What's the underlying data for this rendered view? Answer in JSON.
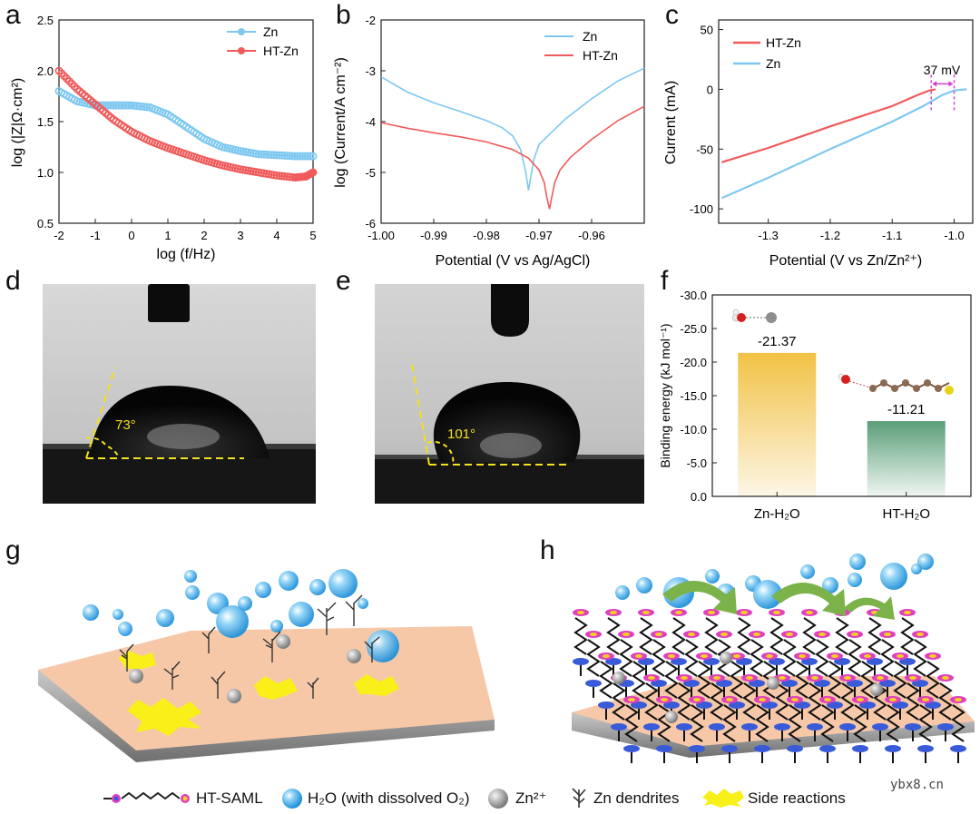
{
  "figure": {
    "panel_labels": [
      "a",
      "b",
      "c",
      "d",
      "e",
      "f",
      "g",
      "h"
    ],
    "watermark": "ybx8.cn"
  },
  "chart_data": [
    {
      "panel": "a",
      "type": "scatter",
      "xlabel": "log (f/Hz)",
      "ylabel": "log (|Z|Ω·cm²)",
      "xlim": [
        -2,
        5
      ],
      "ylim": [
        0.5,
        2.5
      ],
      "xticks": [
        "-2",
        "-1",
        "0",
        "1",
        "2",
        "3",
        "4",
        "5"
      ],
      "yticks": [
        "0.5",
        "1.0",
        "1.5",
        "2.0",
        "2.5"
      ],
      "legend": [
        "Zn",
        "HT-Zn"
      ],
      "series": [
        {
          "name": "Zn",
          "color": "#7ec8f0",
          "x": [
            -2,
            -1.5,
            -1,
            -0.5,
            0,
            0.5,
            1,
            1.5,
            2,
            2.5,
            3,
            3.5,
            4,
            4.5,
            5
          ],
          "y": [
            1.8,
            1.7,
            1.66,
            1.66,
            1.66,
            1.64,
            1.57,
            1.45,
            1.33,
            1.25,
            1.21,
            1.18,
            1.17,
            1.16,
            1.16
          ]
        },
        {
          "name": "HT-Zn",
          "color": "#f05a5a",
          "x": [
            -2,
            -1.5,
            -1,
            -0.5,
            0,
            0.5,
            1,
            1.5,
            2,
            2.5,
            3,
            3.5,
            4,
            4.5,
            4.8,
            5
          ],
          "y": [
            2.0,
            1.82,
            1.67,
            1.52,
            1.4,
            1.31,
            1.24,
            1.18,
            1.12,
            1.07,
            1.03,
            1.0,
            0.97,
            0.95,
            0.96,
            1.0
          ]
        }
      ]
    },
    {
      "panel": "b",
      "type": "line",
      "xlabel": "Potential (V vs Ag/AgCl)",
      "ylabel": "log (Current/A cm⁻²)",
      "xlim": [
        -1.0,
        -0.95
      ],
      "ylim": [
        -6,
        -2
      ],
      "xticks": [
        "-1.00",
        "-0.99",
        "-0.98",
        "-0.97",
        "-0.96"
      ],
      "yticks": [
        "-6",
        "-5",
        "-4",
        "-3",
        "-2"
      ],
      "legend": [
        "Zn",
        "HT-Zn"
      ],
      "series": [
        {
          "name": "Zn",
          "color": "#7ec8f0",
          "x": [
            -1.0,
            -0.995,
            -0.99,
            -0.985,
            -0.98,
            -0.977,
            -0.975,
            -0.9735,
            -0.9725,
            -0.972,
            -0.9715,
            -0.971,
            -0.97,
            -0.965,
            -0.96,
            -0.955,
            -0.95
          ],
          "y": [
            -3.12,
            -3.42,
            -3.63,
            -3.8,
            -3.98,
            -4.12,
            -4.28,
            -4.55,
            -5.0,
            -5.35,
            -5.05,
            -4.75,
            -4.45,
            -3.95,
            -3.55,
            -3.2,
            -2.95
          ]
        },
        {
          "name": "HT-Zn",
          "color": "#f05a5a",
          "x": [
            -1.0,
            -0.995,
            -0.99,
            -0.985,
            -0.98,
            -0.975,
            -0.972,
            -0.97,
            -0.969,
            -0.9685,
            -0.968,
            -0.9675,
            -0.967,
            -0.966,
            -0.964,
            -0.96,
            -0.955,
            -0.95
          ],
          "y": [
            -4.02,
            -4.13,
            -4.22,
            -4.3,
            -4.4,
            -4.55,
            -4.72,
            -4.95,
            -5.2,
            -5.5,
            -5.72,
            -5.45,
            -5.2,
            -4.95,
            -4.7,
            -4.35,
            -3.98,
            -3.7
          ]
        }
      ]
    },
    {
      "panel": "c",
      "type": "line",
      "xlabel": "Potential (V vs Zn/Zn²⁺)",
      "ylabel": "Current (mA)",
      "xlim": [
        -1.38,
        -0.97
      ],
      "ylim": [
        -112,
        58
      ],
      "xticks": [
        "-1.3",
        "-1.2",
        "-1.1",
        "-1.0"
      ],
      "xtick_values": [
        -1.3,
        -1.2,
        -1.1,
        -1.0
      ],
      "yticks": [
        "-100",
        "-50",
        "0",
        "50"
      ],
      "ytick_values": [
        -100,
        -50,
        0,
        50
      ],
      "legend": [
        "HT-Zn",
        "Zn"
      ],
      "annotation": "37 mV",
      "series": [
        {
          "name": "HT-Zn",
          "color": "#f05a5a",
          "x": [
            -1.375,
            -1.3,
            -1.2,
            -1.1,
            -1.06,
            -1.04,
            -1.03
          ],
          "y": [
            -61,
            -49,
            -31,
            -14,
            -5,
            -1,
            0
          ]
        },
        {
          "name": "Zn",
          "color": "#7ec8f0",
          "x": [
            -1.375,
            -1.3,
            -1.2,
            -1.1,
            -1.05,
            -1.02,
            -1.0,
            -0.98
          ],
          "y": [
            -91,
            -74,
            -50,
            -27,
            -14,
            -5,
            -1,
            0
          ]
        }
      ]
    },
    {
      "panel": "f",
      "type": "bar",
      "ylabel": "Binding energy (kJ mol⁻¹)",
      "ylim": [
        0,
        -30
      ],
      "yticks": [
        "0.0",
        "-5.0",
        "-10.0",
        "-15.0",
        "-20.0",
        "-25.0",
        "-30.0"
      ],
      "categories": [
        "Zn-H₂O",
        "HT-H₂O"
      ],
      "values": [
        -21.37,
        -11.21
      ],
      "value_labels": [
        "-21.37",
        "-11.21"
      ],
      "colors": [
        "#f1c245",
        "#5a9e78"
      ]
    }
  ],
  "photos": {
    "d": {
      "angle": "73°"
    },
    "e": {
      "angle": "101°"
    }
  },
  "legend_bottom": {
    "haml": "HT-SAML",
    "h2o": "H₂O (with dissolved O₂)",
    "zn": "Zn²⁺",
    "dendrites": "Zn dendrites",
    "side": "Side reactions"
  }
}
